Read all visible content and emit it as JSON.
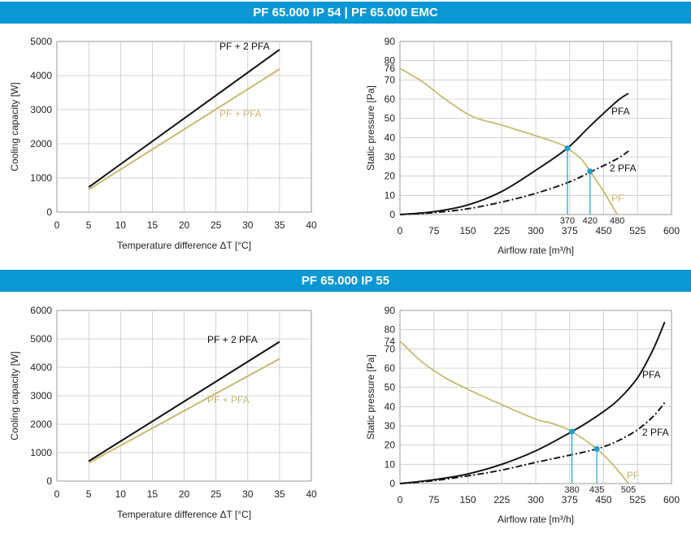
{
  "sections": [
    {
      "title": "PF 65.000 IP 54 | PF 65.000 EMC",
      "charts": [
        {
          "type": "line",
          "xlabel": "Temperature difference ΔT [°C]",
          "ylabel": "Cooling capacity [W]",
          "xlim": [
            0,
            40
          ],
          "ylim": [
            0,
            5000
          ],
          "xticks": [
            "0",
            "5",
            "10",
            "15",
            "20",
            "25",
            "30",
            "35",
            "40"
          ],
          "yticks": [
            "0",
            "1000",
            "2000",
            "3000",
            "4000",
            "5000"
          ],
          "grid": true,
          "series": [
            {
              "name": "PF + 2 PFA",
              "color": "#111111",
              "x": [
                5,
                35
              ],
              "y": [
                730,
                4760
              ]
            },
            {
              "name": "PF + PFA",
              "color": "#c9b971",
              "x": [
                5,
                35
              ],
              "y": [
                660,
                4190
              ]
            }
          ]
        },
        {
          "type": "line",
          "xlabel": "Airflow rate [m³/h]",
          "ylabel": "Static pressure [Pa]",
          "xlim": [
            0,
            600
          ],
          "ylim": [
            0,
            90
          ],
          "xticks": [
            "0",
            "75",
            "150",
            "225",
            "300",
            "375",
            "450",
            "525",
            "600"
          ],
          "yticks": [
            "0",
            "10",
            "20",
            "30",
            "40",
            "50",
            "60",
            "70",
            "80",
            "90"
          ],
          "extra_yticks": [
            "76"
          ],
          "grid": true,
          "series": [
            {
              "name": "PFA",
              "color": "#111111",
              "style": "solid",
              "x": [
                0,
                75,
                150,
                225,
                300,
                370,
                420,
                480,
                505
              ],
              "y": [
                0,
                1.5,
                5,
                12,
                23,
                34.5,
                46,
                59,
                63
              ]
            },
            {
              "name": "2 PFA",
              "color": "#111111",
              "style": "dashdot",
              "x": [
                0,
                75,
                150,
                225,
                300,
                375,
                420,
                480,
                505
              ],
              "y": [
                0,
                1,
                3,
                6.5,
                11,
                17,
                22,
                29,
                33
              ]
            },
            {
              "name": "PF",
              "color": "#c9b971",
              "style": "solid",
              "x": [
                0,
                50,
                100,
                160,
                225,
                300,
                350,
                370,
                400,
                420,
                450,
                480
              ],
              "y": [
                76,
                69,
                60,
                51,
                46.5,
                41,
                37,
                34.5,
                29,
                22.5,
                12,
                0
              ]
            }
          ],
          "operating_points": [
            {
              "x": 370,
              "y": 34.5,
              "label": "370"
            },
            {
              "x": 420,
              "y": 22.5,
              "label": "420"
            }
          ],
          "x_markers": [
            "480"
          ]
        }
      ]
    },
    {
      "title": "PF 65.000 IP 55",
      "charts": [
        {
          "type": "line",
          "xlabel": "Temperature difference ΔT [°C]",
          "ylabel": "Cooling capacity [W]",
          "xlim": [
            0,
            40
          ],
          "ylim": [
            0,
            6000
          ],
          "xticks": [
            "0",
            "5",
            "10",
            "15",
            "20",
            "25",
            "30",
            "35",
            "40"
          ],
          "yticks": [
            "0",
            "1000",
            "2000",
            "3000",
            "4000",
            "5000",
            "6000"
          ],
          "grid": true,
          "series": [
            {
              "name": "PF + 2 PFA",
              "color": "#111111",
              "x": [
                5,
                35
              ],
              "y": [
                700,
                4900
              ]
            },
            {
              "name": "PF + PFA",
              "color": "#c9b971",
              "x": [
                5,
                35
              ],
              "y": [
                640,
                4300
              ]
            }
          ]
        },
        {
          "type": "line",
          "xlabel": "Airflow rate [m³/h]",
          "ylabel": "Static pressure [Pa]",
          "xlim": [
            0,
            600
          ],
          "ylim": [
            0,
            90
          ],
          "xticks": [
            "0",
            "75",
            "150",
            "225",
            "300",
            "375",
            "450",
            "525",
            "600"
          ],
          "yticks": [
            "0",
            "10",
            "20",
            "30",
            "40",
            "50",
            "60",
            "70",
            "80",
            "90"
          ],
          "extra_yticks": [
            "74"
          ],
          "grid": true,
          "series": [
            {
              "name": "PFA",
              "color": "#111111",
              "style": "solid",
              "x": [
                0,
                75,
                150,
                225,
                300,
                380,
                435,
                480,
                525,
                560,
                585
              ],
              "y": [
                0,
                2,
                5,
                10,
                17,
                27,
                35,
                43,
                55,
                70,
                84
              ]
            },
            {
              "name": "2 PFA",
              "color": "#111111",
              "style": "dashdot",
              "x": [
                0,
                75,
                150,
                225,
                300,
                380,
                435,
                480,
                525,
                560,
                585
              ],
              "y": [
                0,
                1.5,
                4,
                7,
                11,
                15,
                18,
                22,
                28,
                35,
                42
              ]
            },
            {
              "name": "PF",
              "color": "#c9b971",
              "style": "solid",
              "x": [
                0,
                50,
                100,
                150,
                225,
                300,
                340,
                380,
                435,
                470,
                505
              ],
              "y": [
                74,
                63,
                55,
                49,
                41,
                33.5,
                31,
                27,
                18,
                10,
                0
              ]
            }
          ],
          "operating_points": [
            {
              "x": 380,
              "y": 27,
              "label": "380"
            },
            {
              "x": 435,
              "y": 18,
              "label": "435"
            }
          ],
          "x_markers": [
            "505"
          ]
        }
      ]
    }
  ]
}
